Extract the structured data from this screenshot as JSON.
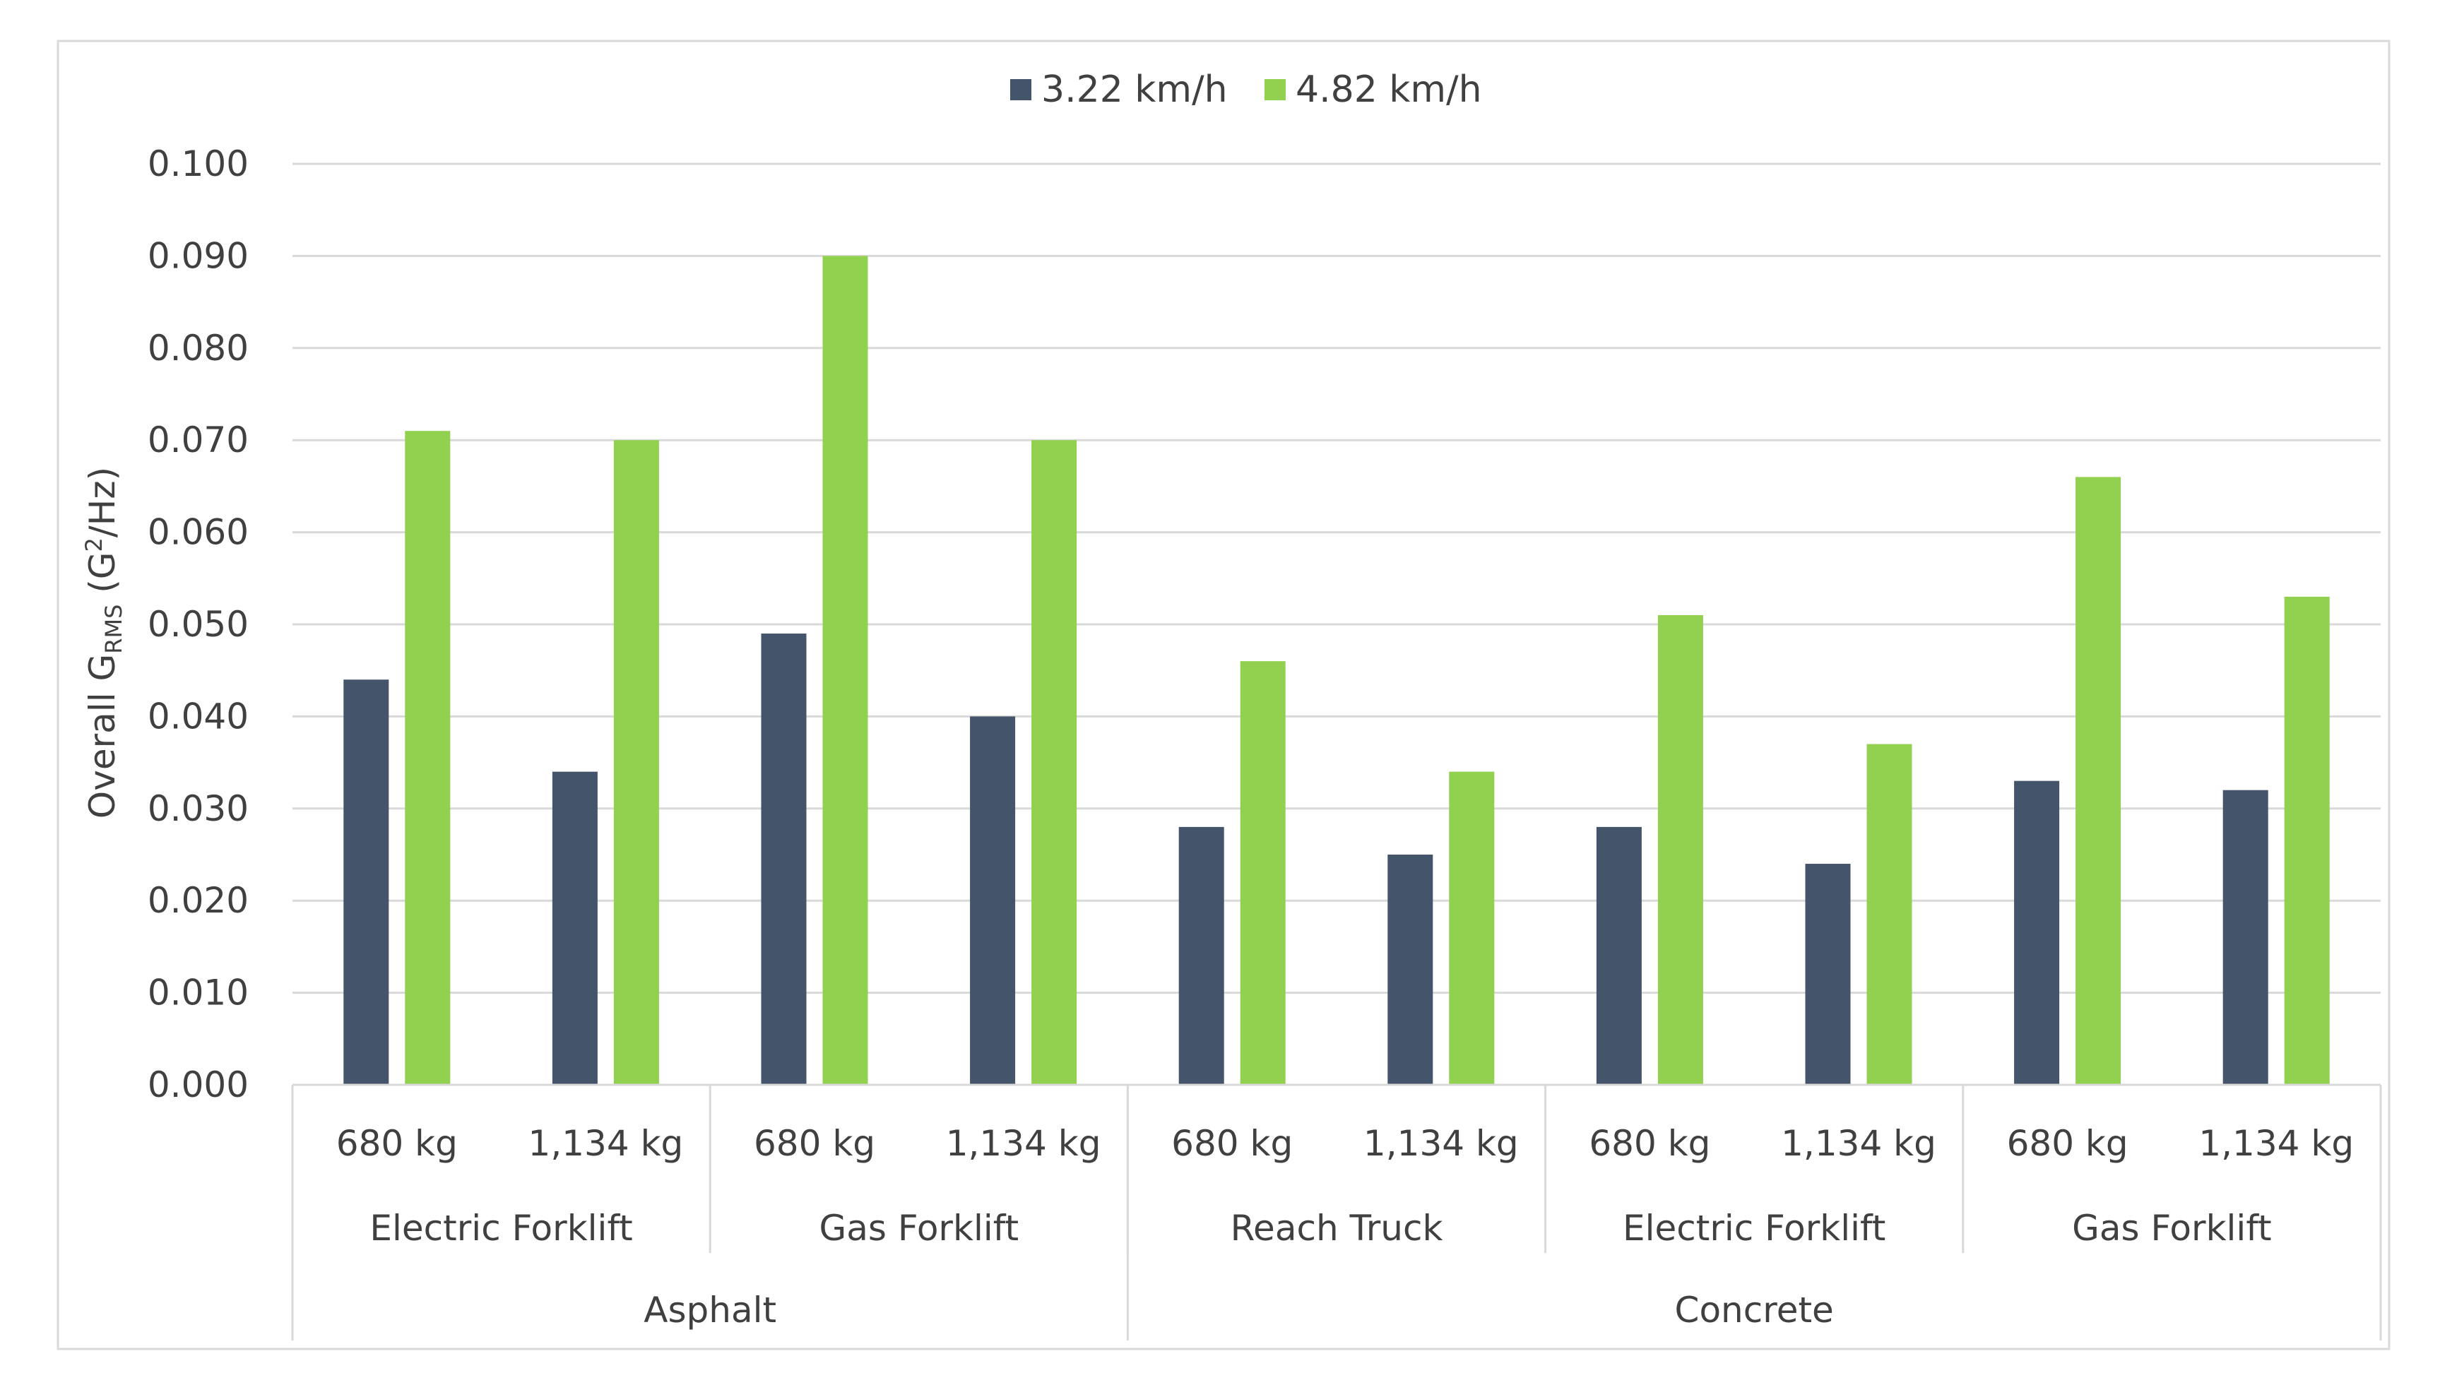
{
  "chart_data": {
    "type": "bar",
    "title": "",
    "ylabel": {
      "prefix": "Overall G",
      "subscript": "RMS",
      "suffix_before_sup": " (G",
      "superscript": "2",
      "suffix": "/Hz)"
    },
    "ylim": [
      0,
      0.1
    ],
    "yticks": [
      "0.000",
      "0.010",
      "0.020",
      "0.030",
      "0.040",
      "0.050",
      "0.060",
      "0.070",
      "0.080",
      "0.090",
      "0.100"
    ],
    "ytick_values": [
      0,
      0.01,
      0.02,
      0.03,
      0.04,
      0.05,
      0.06,
      0.07,
      0.08,
      0.09,
      0.1
    ],
    "grid": true,
    "legend_position": "top-center",
    "categories": [
      "680 kg",
      "1,134 kg",
      "680 kg",
      "1,134 kg",
      "680 kg",
      "1,134 kg",
      "680 kg",
      "1,134 kg",
      "680 kg",
      "1,134 kg"
    ],
    "category_groups": [
      {
        "label": "Electric Forklift",
        "span": 2
      },
      {
        "label": "Gas Forklift",
        "span": 2
      },
      {
        "label": "Reach Truck",
        "span": 2
      },
      {
        "label": "Electric Forklift",
        "span": 2
      },
      {
        "label": "Gas Forklift",
        "span": 2
      }
    ],
    "surface_groups": [
      {
        "label": "Asphalt",
        "span": 4
      },
      {
        "label": "Concrete",
        "span": 6
      }
    ],
    "series": [
      {
        "name": "3.22 km/h",
        "color": "#44546a",
        "values": [
          0.044,
          0.034,
          0.049,
          0.04,
          0.028,
          0.025,
          0.028,
          0.024,
          0.033,
          0.032
        ]
      },
      {
        "name": "4.82 km/h",
        "color": "#92d050",
        "values": [
          0.071,
          0.07,
          0.09,
          0.07,
          0.046,
          0.034,
          0.051,
          0.037,
          0.066,
          0.053
        ]
      }
    ]
  }
}
